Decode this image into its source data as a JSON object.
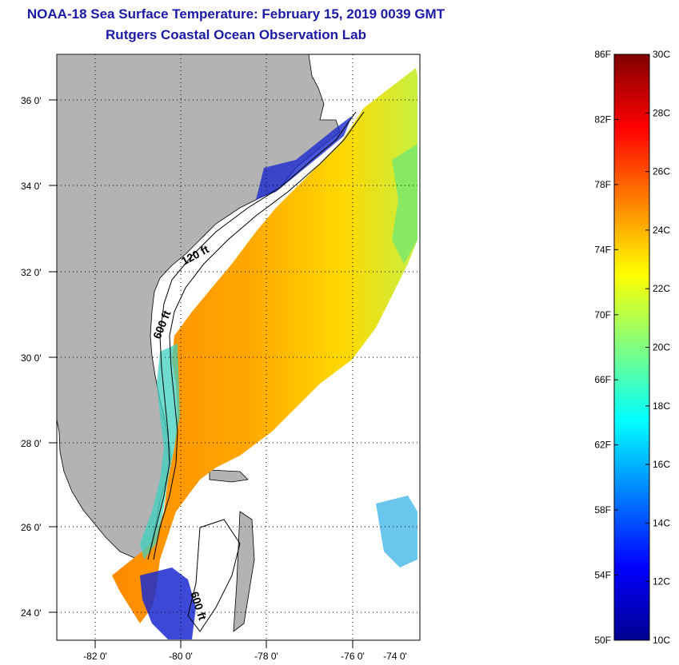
{
  "title": {
    "line1": "NOAA-18 Sea Surface Temperature:  February 15, 2019 0039 GMT",
    "line2": "Rutgers Coastal Ocean Observation Lab"
  },
  "map": {
    "lat_labels": [
      "36 0'",
      "34 0'",
      "32 0'",
      "30 0'",
      "28 0'",
      "26 0'",
      "24 0'"
    ],
    "lon_labels": [
      "-82 0'",
      "-80 0'",
      "-78 0'",
      "-76 0'",
      "-74 0'"
    ],
    "contour_labels": [
      "120 ft",
      "600 ft",
      "600 ft"
    ]
  },
  "colorbar": {
    "fahrenheit_labels": [
      "86F",
      "82F",
      "78F",
      "74F",
      "70F",
      "66F",
      "62F",
      "58F",
      "54F",
      "50F"
    ],
    "celsius_labels": [
      "30C",
      "28C",
      "26C",
      "24C",
      "22C",
      "20C",
      "18C",
      "16C",
      "14C",
      "12C",
      "10C"
    ],
    "colors": [
      "#00008f",
      "#0000ff",
      "#0080ff",
      "#00ffff",
      "#80ff80",
      "#ffff00",
      "#ff8000",
      "#ff0000",
      "#800000"
    ]
  }
}
